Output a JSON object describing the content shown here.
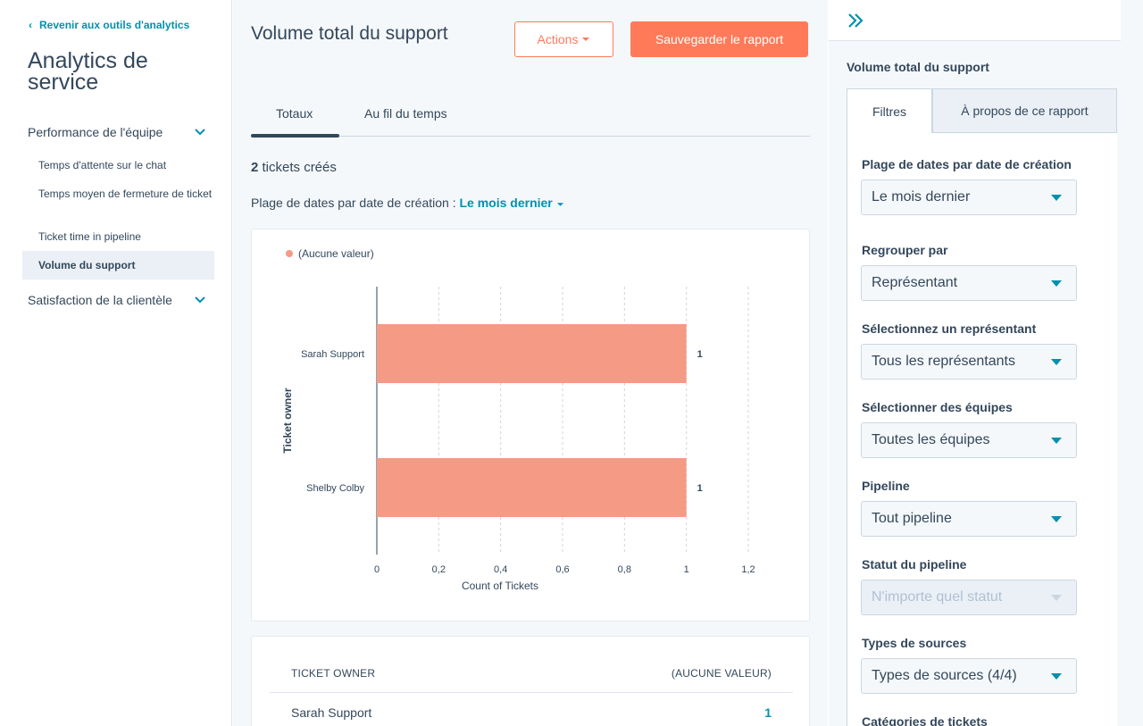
{
  "sidebar": {
    "back_label": "Revenir aux outils d'analytics",
    "title": "Analytics de service",
    "group1": "Performance de l'équipe",
    "items": [
      "Temps d'attente sur le chat",
      "Temps moyen de fermeture de ticket",
      "Ticket time in pipeline",
      "Volume du support"
    ],
    "group2": "Satisfaction de la clientèle",
    "accent_color": "#0091ae"
  },
  "main": {
    "title": "Volume total du support",
    "actions_label": "Actions",
    "save_label": "Sauvegarder le rapport",
    "tabs": [
      "Totaux",
      "Au fil du temps"
    ],
    "active_tab": "Totaux",
    "count_number": "2",
    "count_suffix": " tickets créés",
    "range_label": "Plage de dates par date de création : ",
    "range_value": "Le mois dernier",
    "brand_color": "#ff7a59"
  },
  "chart_data": {
    "type": "bar",
    "orientation": "horizontal",
    "categories": [
      "Sarah Support",
      "Shelby Colby"
    ],
    "series": [
      {
        "name": "(Aucune valeur)",
        "values": [
          1,
          1
        ],
        "color": "#f49a85"
      }
    ],
    "data_labels": [
      "1",
      "1"
    ],
    "xlabel": "Count of Tickets",
    "ylabel": "Ticket owner",
    "xlim": [
      0,
      1.2
    ],
    "xticks": [
      "0",
      "0,2",
      "0,4",
      "0,6",
      "0,8",
      "1",
      "1,2"
    ],
    "grid": true,
    "legend_position": "top-left"
  },
  "table": {
    "headers": [
      "TICKET OWNER",
      "(AUCUNE VALEUR)"
    ],
    "rows": [
      {
        "owner": "Sarah Support",
        "value": "1"
      }
    ]
  },
  "right": {
    "title": "Volume total du support",
    "tabs": [
      "Filtres",
      "À propos de ce rapport"
    ],
    "filters": [
      {
        "label": "Plage de dates par date de création",
        "value": "Le mois dernier",
        "disabled": false
      },
      {
        "label": "Regrouper par",
        "value": "Représentant",
        "disabled": false
      },
      {
        "label": "Sélectionnez un représentant",
        "value": "Tous les représentants",
        "disabled": false
      },
      {
        "label": "Sélectionner des équipes",
        "value": "Toutes les équipes",
        "disabled": false
      },
      {
        "label": "Pipeline",
        "value": "Tout pipeline",
        "disabled": false
      },
      {
        "label": "Statut du pipeline",
        "value": "N'importe quel statut",
        "disabled": true
      },
      {
        "label": "Types de sources",
        "value": "Types de sources (4/4)",
        "disabled": false
      }
    ],
    "cut_label": "Catégories de tickets"
  }
}
